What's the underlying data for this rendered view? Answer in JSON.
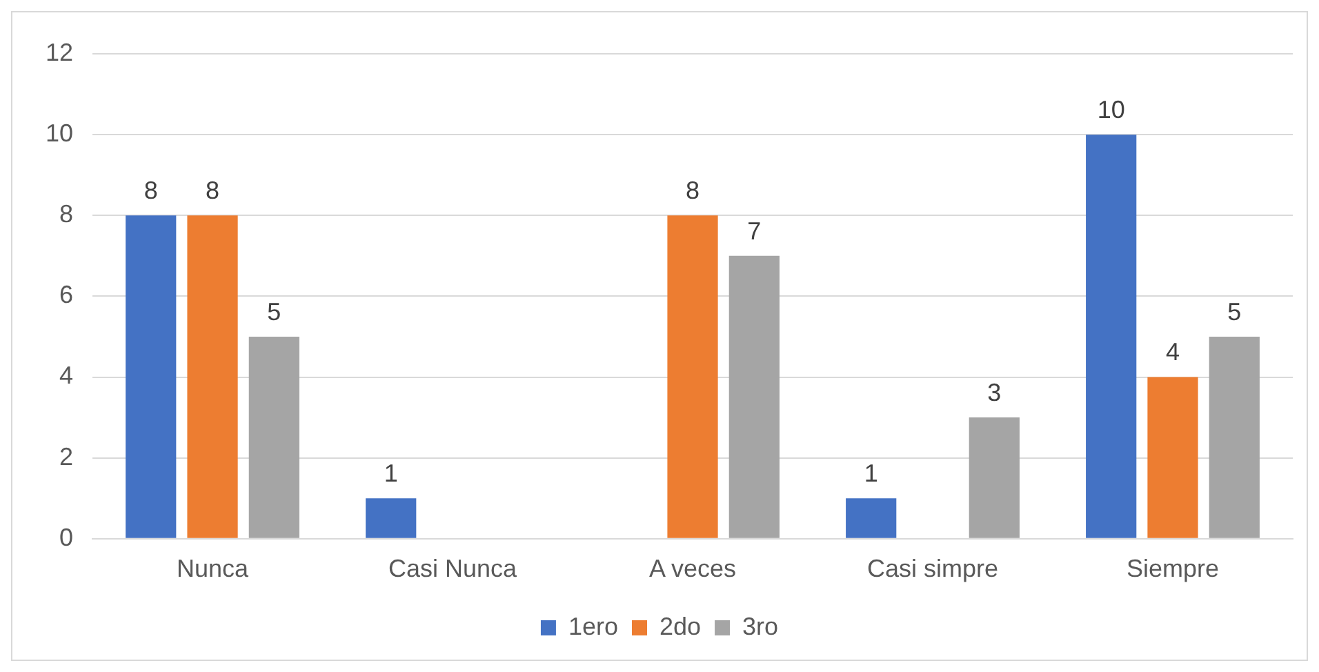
{
  "chart_data": {
    "type": "bar",
    "categories": [
      "Nunca",
      "Casi Nunca",
      "A veces",
      "Casi simpre",
      "Siempre"
    ],
    "series": [
      {
        "name": "1ero",
        "color": "#4472c4",
        "values": [
          8,
          1,
          null,
          1,
          10
        ]
      },
      {
        "name": "2do",
        "color": "#ed7d31",
        "values": [
          8,
          null,
          8,
          null,
          4
        ]
      },
      {
        "name": "3ro",
        "color": "#a5a5a5",
        "values": [
          5,
          null,
          7,
          3,
          5
        ]
      }
    ],
    "ylim": [
      0,
      12
    ],
    "yticks": [
      0,
      2,
      4,
      6,
      8,
      10,
      12
    ],
    "grid": "y",
    "legend": "bottom",
    "data_labels": true
  }
}
